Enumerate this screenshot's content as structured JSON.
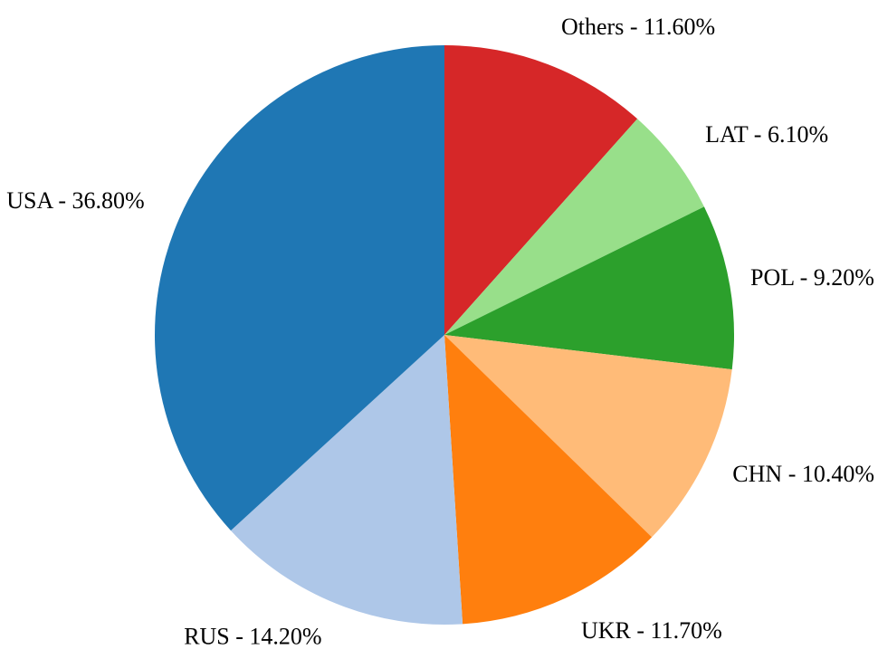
{
  "chart_data": {
    "type": "pie",
    "title": "",
    "slices": [
      {
        "label": "Others",
        "value": 11.6,
        "display": "Others - 11.60%",
        "color": "#d62728"
      },
      {
        "label": "LAT",
        "value": 6.1,
        "display": "LAT - 6.10%",
        "color": "#98df8a"
      },
      {
        "label": "POL",
        "value": 9.2,
        "display": "POL - 9.20%",
        "color": "#2ca02c"
      },
      {
        "label": "CHN",
        "value": 10.4,
        "display": "CHN - 10.40%",
        "color": "#ffbb78"
      },
      {
        "label": "UKR",
        "value": 11.7,
        "display": "UKR - 11.70%",
        "color": "#ff7f0e"
      },
      {
        "label": "RUS",
        "value": 14.2,
        "display": "RUS - 14.20%",
        "color": "#aec7e8"
      },
      {
        "label": "USA",
        "value": 36.8,
        "display": "USA - 36.80%",
        "color": "#1f77b4"
      }
    ],
    "start_angle": "12 o'clock",
    "direction": "clockwise",
    "legend": "none",
    "grid": false
  }
}
